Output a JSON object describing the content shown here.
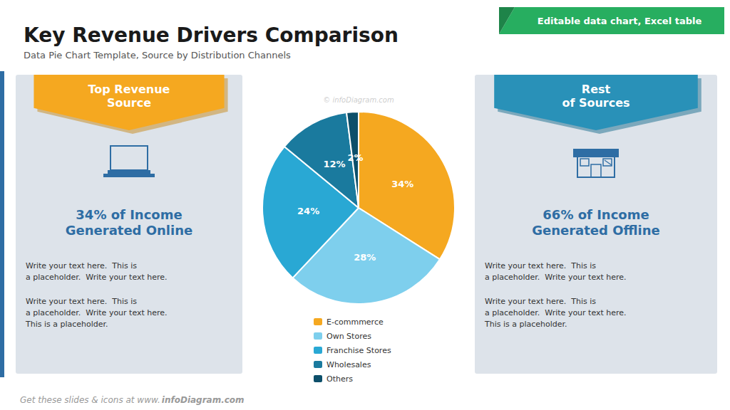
{
  "chart_data": {
    "type": "pie",
    "title": "Key Revenue Drivers Comparison",
    "subtitle": "Data Pie Chart Template, Source by Distribution Channels",
    "categories": [
      "E-commmerce",
      "Own Stores",
      "Franchise Stores",
      "Wholesales",
      "Others"
    ],
    "values": [
      34,
      28,
      24,
      12,
      2
    ],
    "value_labels": [
      "34%",
      "28%",
      "24%",
      "12%",
      "2%"
    ],
    "colors": [
      "#f5a820",
      "#7ecfed",
      "#29a8d4",
      "#1a7a9e",
      "#0d4f6a"
    ],
    "data_labels": true,
    "legend": "bottom",
    "annotations": [
      "Editable data chart, Excel table",
      "Top Revenue\nSource",
      "34% of Income\nGenerated Online",
      "Write your text here.  This is\na placeholder.  Write your text here.",
      "Write your text here.  This is\na placeholder.  Write your text here.\nThis is a placeholder.",
      "Rest\nof Sources",
      "66% of Income\nGenerated Offline",
      "Write your text here.  This is\na placeholder.  Write your text here.",
      "Write your text here.  This is\na placeholder.  Write your text here.\nThis is a placeholder.",
      "© infoDiagram.com",
      "Get these slides & icons at www.",
      "infoDiagram.com"
    ]
  }
}
